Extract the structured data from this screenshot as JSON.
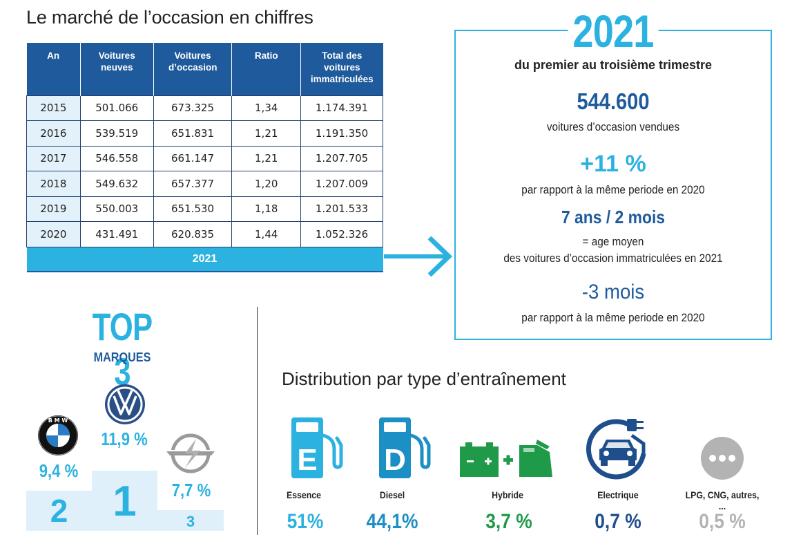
{
  "title": "Le marché de l’occasion en chiffres",
  "table": {
    "headers": [
      "An",
      "Voitures neuves",
      "Voitures d’occasion",
      "Ratio",
      "Total des voitures immatriculées"
    ],
    "rows": [
      [
        "2015",
        "501.066",
        "673.325",
        "1,34",
        "1.174.391"
      ],
      [
        "2016",
        "539.519",
        "651.831",
        "1,21",
        "1.191.350"
      ],
      [
        "2017",
        "546.558",
        "661.147",
        "1,21",
        "1.207.705"
      ],
      [
        "2018",
        "549.632",
        "657.377",
        "1,20",
        "1.207.009"
      ],
      [
        "2019",
        "550.003",
        "651.530",
        "1,18",
        "1.201.533"
      ],
      [
        "2020",
        "431.491",
        "620.835",
        "1,44",
        "1.052.326"
      ]
    ],
    "footer_year": "2021"
  },
  "box": {
    "year": "2021",
    "subtitle": "du premier au troisième trimestre",
    "stat1_value": "544.600",
    "stat1_desc": "voitures d’occasion vendues",
    "stat2_value": "+11 %",
    "stat2_desc": "par rapport à la même periode en 2020",
    "stat3_value": "7 ans / 2 mois",
    "stat3_desc_line1": "= age moyen",
    "stat3_desc_line2": "des voitures d’occasion immatriculées en 2021",
    "stat4_value": "-3 mois",
    "stat4_desc": "par rapport à la même periode en 2020"
  },
  "top3": {
    "title": "TOP 3",
    "subtitle": "MARQUES",
    "brands": [
      {
        "rank": "1",
        "brand_icon": "volkswagen-logo",
        "percent": "11,9 %"
      },
      {
        "rank": "2",
        "brand_icon": "bmw-logo",
        "percent": "9,4 %"
      },
      {
        "rank": "3",
        "brand_icon": "opel-logo",
        "percent": "7,7 %"
      }
    ],
    "colors": {
      "accent": "#2cb2e0",
      "podium": "#dff0fb"
    }
  },
  "distribution": {
    "title": "Distribution par type d’entraînement",
    "items": [
      {
        "label": "Essence",
        "percent": "51%",
        "icon": "fuel-pump-e-icon",
        "color": "#2cb2e0"
      },
      {
        "label": "Diesel",
        "percent": "44,1%",
        "icon": "fuel-pump-d-icon",
        "color": "#1c8fc4"
      },
      {
        "label": "Hybride",
        "percent": "3,7 %",
        "icon": "battery-jerrycan-icon",
        "color": "#1f9a48"
      },
      {
        "label": "Electrique",
        "percent": "0,7 %",
        "icon": "electric-car-plug-icon",
        "color": "#1e4e8c"
      },
      {
        "label": "LPG, CNG, autres, ...",
        "percent": "0,5 %",
        "icon": "more-dots-icon",
        "color": "#b3b3b3"
      }
    ]
  }
}
